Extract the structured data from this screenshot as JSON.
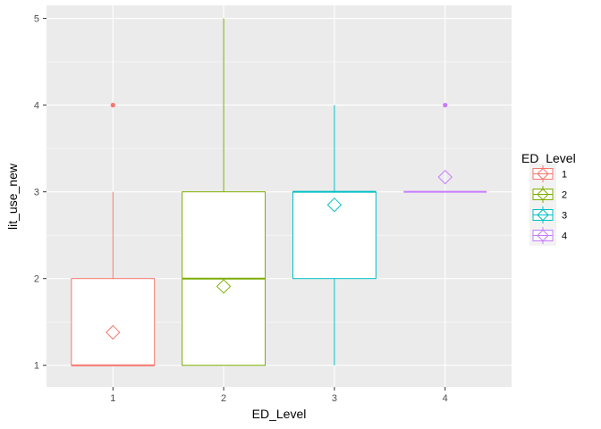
{
  "chart_data": {
    "type": "boxplot",
    "xlabel": "ED_Level",
    "ylabel": "lit_use_new",
    "categories": [
      "1",
      "2",
      "3",
      "4"
    ],
    "ylim": [
      0.75,
      5.15
    ],
    "yticks": [
      1,
      2,
      3,
      4,
      5
    ],
    "grid": true,
    "legend": {
      "title": "ED_Level",
      "position": "right",
      "entries": [
        "1",
        "2",
        "3",
        "4"
      ]
    },
    "colors": [
      "#F8766D",
      "#7CAE00",
      "#00BFC4",
      "#C77CFF"
    ],
    "panel_background": "#EBEBEB",
    "boxes": [
      {
        "category": "1",
        "min": 1,
        "q1": 1,
        "median": 1,
        "q3": 2,
        "max": 3,
        "outliers": [
          4
        ],
        "mean": 1.38
      },
      {
        "category": "2",
        "min": 1,
        "q1": 1,
        "median": 2,
        "q3": 3,
        "max": 5,
        "outliers": [],
        "mean": 1.91
      },
      {
        "category": "3",
        "min": 1,
        "q1": 2,
        "median": 3,
        "q3": 3,
        "max": 4,
        "outliers": [],
        "mean": 2.85
      },
      {
        "category": "4",
        "min": 3,
        "q1": 3,
        "median": 3,
        "q3": 3,
        "max": 3,
        "outliers": [
          4
        ],
        "mean": 3.17
      }
    ]
  }
}
